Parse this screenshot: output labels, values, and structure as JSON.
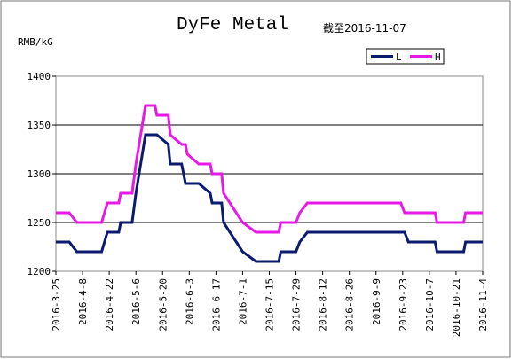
{
  "chart_data": {
    "type": "line",
    "title": "DyFe Metal",
    "note": "截至2016-11-07",
    "y_label": "RMB/kG",
    "x": [
      "2016-3-25",
      "2016-4-1",
      "2016-4-5",
      "2016-4-18",
      "2016-4-21",
      "2016-4-27",
      "2016-4-28",
      "2016-5-4",
      "2016-5-6",
      "2016-5-11",
      "2016-5-16",
      "2016-5-17",
      "2016-5-23",
      "2016-5-24",
      "2016-5-30",
      "2016-6-1",
      "2016-6-2",
      "2016-6-8",
      "2016-6-14",
      "2016-6-15",
      "2016-6-20",
      "2016-6-21",
      "2016-7-1",
      "2016-7-8",
      "2016-7-20",
      "2016-7-21",
      "2016-7-29",
      "2016-7-31",
      "2016-8-4",
      "2016-9-22",
      "2016-9-24",
      "2016-9-26",
      "2016-10-10",
      "2016-10-11",
      "2016-10-25",
      "2016-10-26",
      "2016-11-4"
    ],
    "series": [
      {
        "name": "L",
        "color": "#0a1a6e",
        "values": [
          1230,
          1230,
          1220,
          1220,
          1240,
          1240,
          1250,
          1250,
          1280,
          1340,
          1340,
          1340,
          1330,
          1310,
          1310,
          1290,
          1290,
          1290,
          1280,
          1270,
          1270,
          1250,
          1220,
          1210,
          1210,
          1220,
          1220,
          1230,
          1240,
          1240,
          1240,
          1230,
          1230,
          1220,
          1220,
          1230,
          1230
        ]
      },
      {
        "name": "H",
        "color": "#e619e6",
        "values": [
          1260,
          1260,
          1250,
          1250,
          1270,
          1270,
          1280,
          1280,
          1310,
          1370,
          1370,
          1360,
          1360,
          1340,
          1330,
          1330,
          1320,
          1310,
          1310,
          1300,
          1300,
          1280,
          1250,
          1240,
          1240,
          1250,
          1250,
          1260,
          1270,
          1270,
          1260,
          1260,
          1260,
          1250,
          1250,
          1260,
          1260
        ]
      }
    ],
    "xlim": [
      "2016-3-25",
      "2016-11-4"
    ],
    "xticks": [
      "2016-3-25",
      "2016-4-8",
      "2016-4-22",
      "2016-5-6",
      "2016-5-20",
      "2016-6-3",
      "2016-6-17",
      "2016-7-1",
      "2016-7-15",
      "2016-7-29",
      "2016-8-12",
      "2016-8-26",
      "2016-9-9",
      "2016-9-23",
      "2016-10-7",
      "2016-10-21",
      "2016-11-4"
    ],
    "ylim": [
      1200,
      1400
    ],
    "yticks": [
      1200,
      1250,
      1300,
      1350,
      1400
    ],
    "grid": true,
    "legend": "top-right"
  }
}
